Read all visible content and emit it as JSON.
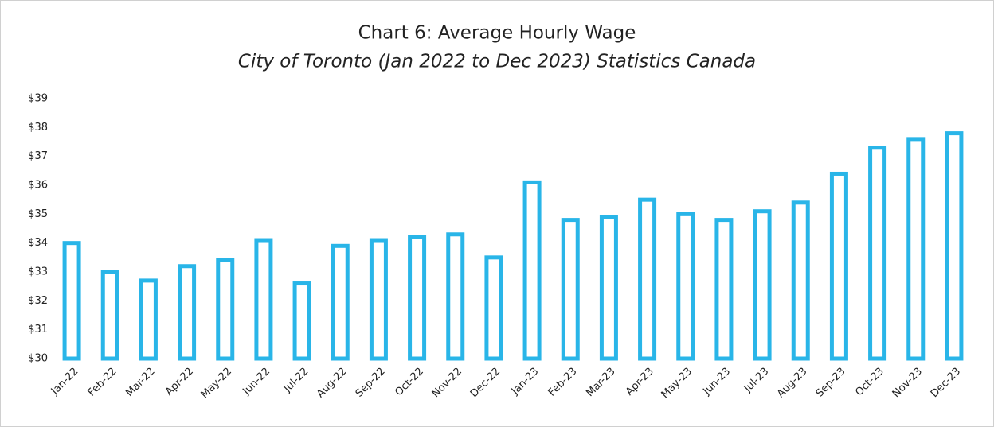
{
  "chart_data": {
    "type": "bar",
    "title": "Chart 6: Average Hourly Wage",
    "subtitle": "City of Toronto (Jan 2022 to Dec 2023) Statistics Canada",
    "categories": [
      "Jan-22",
      "Feb-22",
      "Mar-22",
      "Apr-22",
      "May-22",
      "Jun-22",
      "Jul-22",
      "Aug-22",
      "Sep-22",
      "Oct-22",
      "Nov-22",
      "Dec-22",
      "Jan-23",
      "Feb-23",
      "Mar-23",
      "Apr-23",
      "May-23",
      "Jun-23",
      "Jul-23",
      "Aug-23",
      "Sep-23",
      "Oct-23",
      "Nov-23",
      "Dec-23"
    ],
    "values": [
      34.0,
      33.0,
      32.7,
      33.2,
      33.4,
      34.1,
      32.6,
      33.9,
      34.1,
      34.2,
      34.3,
      33.5,
      36.1,
      34.8,
      34.9,
      35.5,
      35.0,
      34.8,
      35.1,
      35.4,
      36.4,
      37.3,
      37.6,
      37.8
    ],
    "color": "#29b5e8",
    "ylim": [
      30,
      39
    ],
    "yticks": [
      {
        "value": 30,
        "label": "$30"
      },
      {
        "value": 31,
        "label": "$31"
      },
      {
        "value": 32,
        "label": "$32"
      },
      {
        "value": 33,
        "label": "$33"
      },
      {
        "value": 34,
        "label": "$34"
      },
      {
        "value": 35,
        "label": "$35"
      },
      {
        "value": 36,
        "label": "$36"
      },
      {
        "value": 37,
        "label": "$37"
      },
      {
        "value": 38,
        "label": "$38"
      },
      {
        "value": 39,
        "label": "$39"
      }
    ],
    "grid": false
  }
}
